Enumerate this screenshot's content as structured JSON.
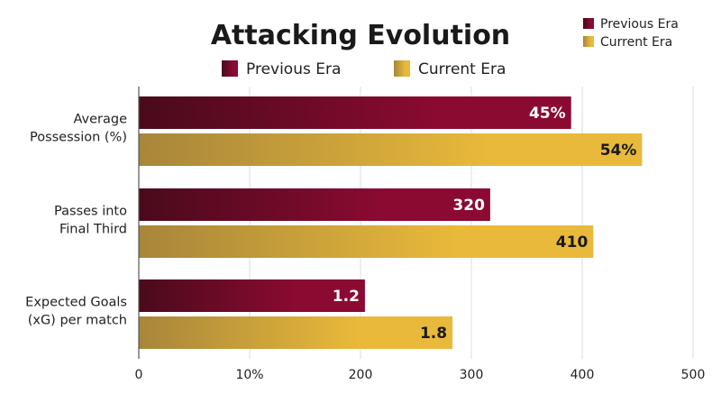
{
  "chart_data": {
    "type": "bar",
    "orientation": "horizontal",
    "title": "Attacking Evolution",
    "categories": [
      [
        "Average",
        "Possession (%)"
      ],
      [
        "Passes into",
        "Final Third"
      ],
      [
        "Expected Goals",
        "(xG) per match"
      ]
    ],
    "series": [
      {
        "name": "Previous Era",
        "values": [
          390,
          317,
          204
        ],
        "labels": [
          "45%",
          "320",
          "1.2"
        ],
        "color": "#8b0a32",
        "color_dark": "#4a0a1c",
        "label_color": "#ffffff"
      },
      {
        "name": "Current Era",
        "values": [
          454,
          410,
          283
        ],
        "labels": [
          "54%",
          "410",
          "1.8"
        ],
        "color": "#e8b93a",
        "color_dark": "#a8863a",
        "label_color": "#1a1a1a"
      }
    ],
    "xlim": [
      0,
      500
    ],
    "x_ticks": [
      "0",
      "10%",
      "200",
      "300",
      "400",
      "500"
    ],
    "grid": true,
    "legend_top": "top-center",
    "legend_corner": "top-right"
  }
}
